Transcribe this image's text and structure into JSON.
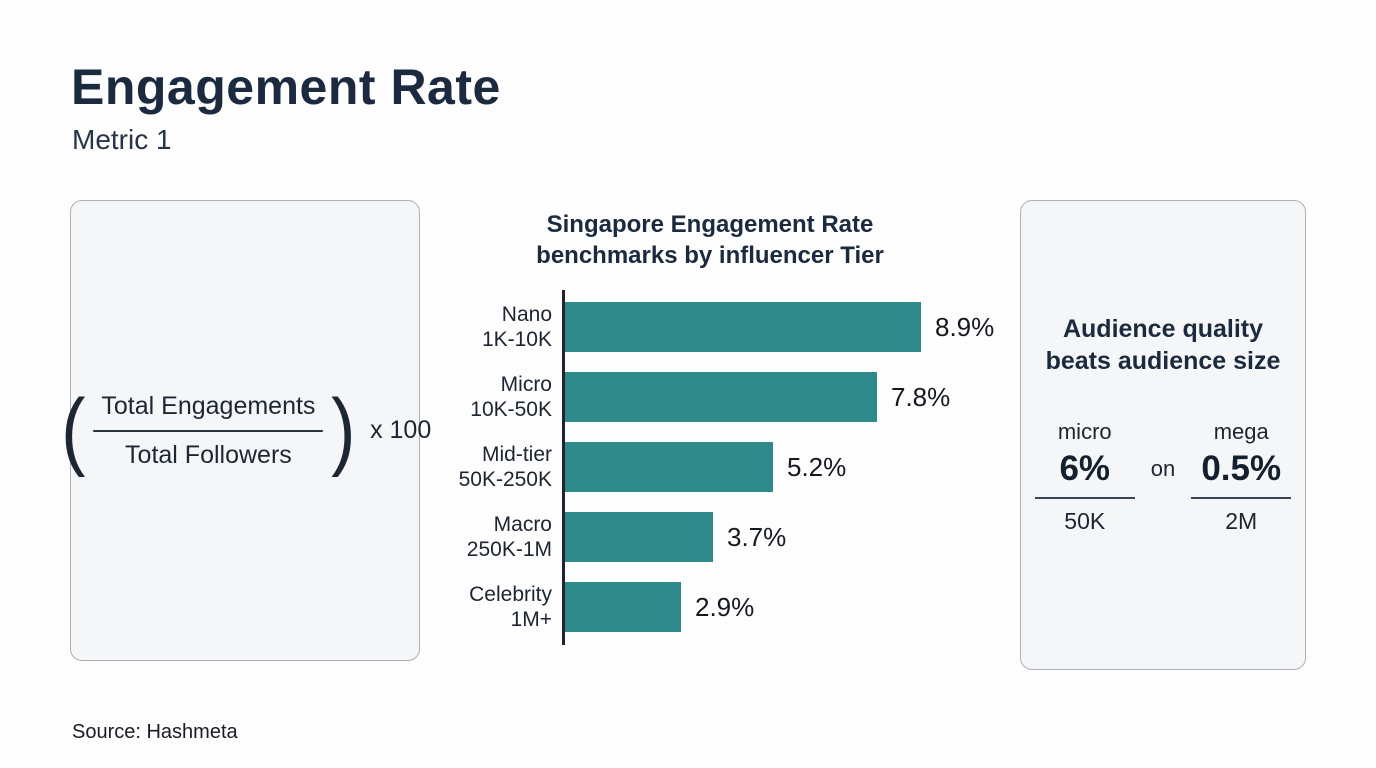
{
  "header": {
    "title": "Engagement Rate",
    "subtitle": "Metric 1"
  },
  "formula_card": {
    "open_paren": "(",
    "numerator": "Total Engagements",
    "denominator": "Total Followers",
    "close_paren": ")",
    "multiplier": "x 100"
  },
  "chart": {
    "title_line1": "Singapore Engagement Rate",
    "title_line2": "benchmarks by influencer Tier"
  },
  "chart_data": {
    "type": "bar",
    "orientation": "horizontal",
    "title": "Singapore Engagement Rate benchmarks by influencer Tier",
    "categories": [
      "Nano",
      "Micro",
      "Mid-tier",
      "Macro",
      "Celebrity"
    ],
    "category_sublabels": [
      "1K-10K",
      "10K-50K",
      "50K-250K",
      "250K-1M",
      "1M+"
    ],
    "values": [
      8.9,
      7.8,
      5.2,
      3.7,
      2.9
    ],
    "value_labels": [
      "8.9%",
      "7.8%",
      "5.2%",
      "3.7%",
      "2.9%"
    ],
    "xlim": [
      0,
      8.9
    ],
    "unit": "%",
    "grid": false,
    "legend": "none",
    "bar_color": "#2f8a8b"
  },
  "insight_card": {
    "heading_line1": "Audience quality",
    "heading_line2": "beats audience size",
    "connector": "on",
    "comparisons": [
      {
        "label": "micro",
        "rate": "6%",
        "base": "50K"
      },
      {
        "label": "mega",
        "rate": "0.5%",
        "base": "2M"
      }
    ]
  },
  "footer": {
    "source": "Source: Hashmeta"
  },
  "colors": {
    "accent_teal": "#2f8a8b",
    "heading_navy": "#1b2a3e",
    "card_bg": "#f5f6f7",
    "card_border": "#abb0b6"
  }
}
